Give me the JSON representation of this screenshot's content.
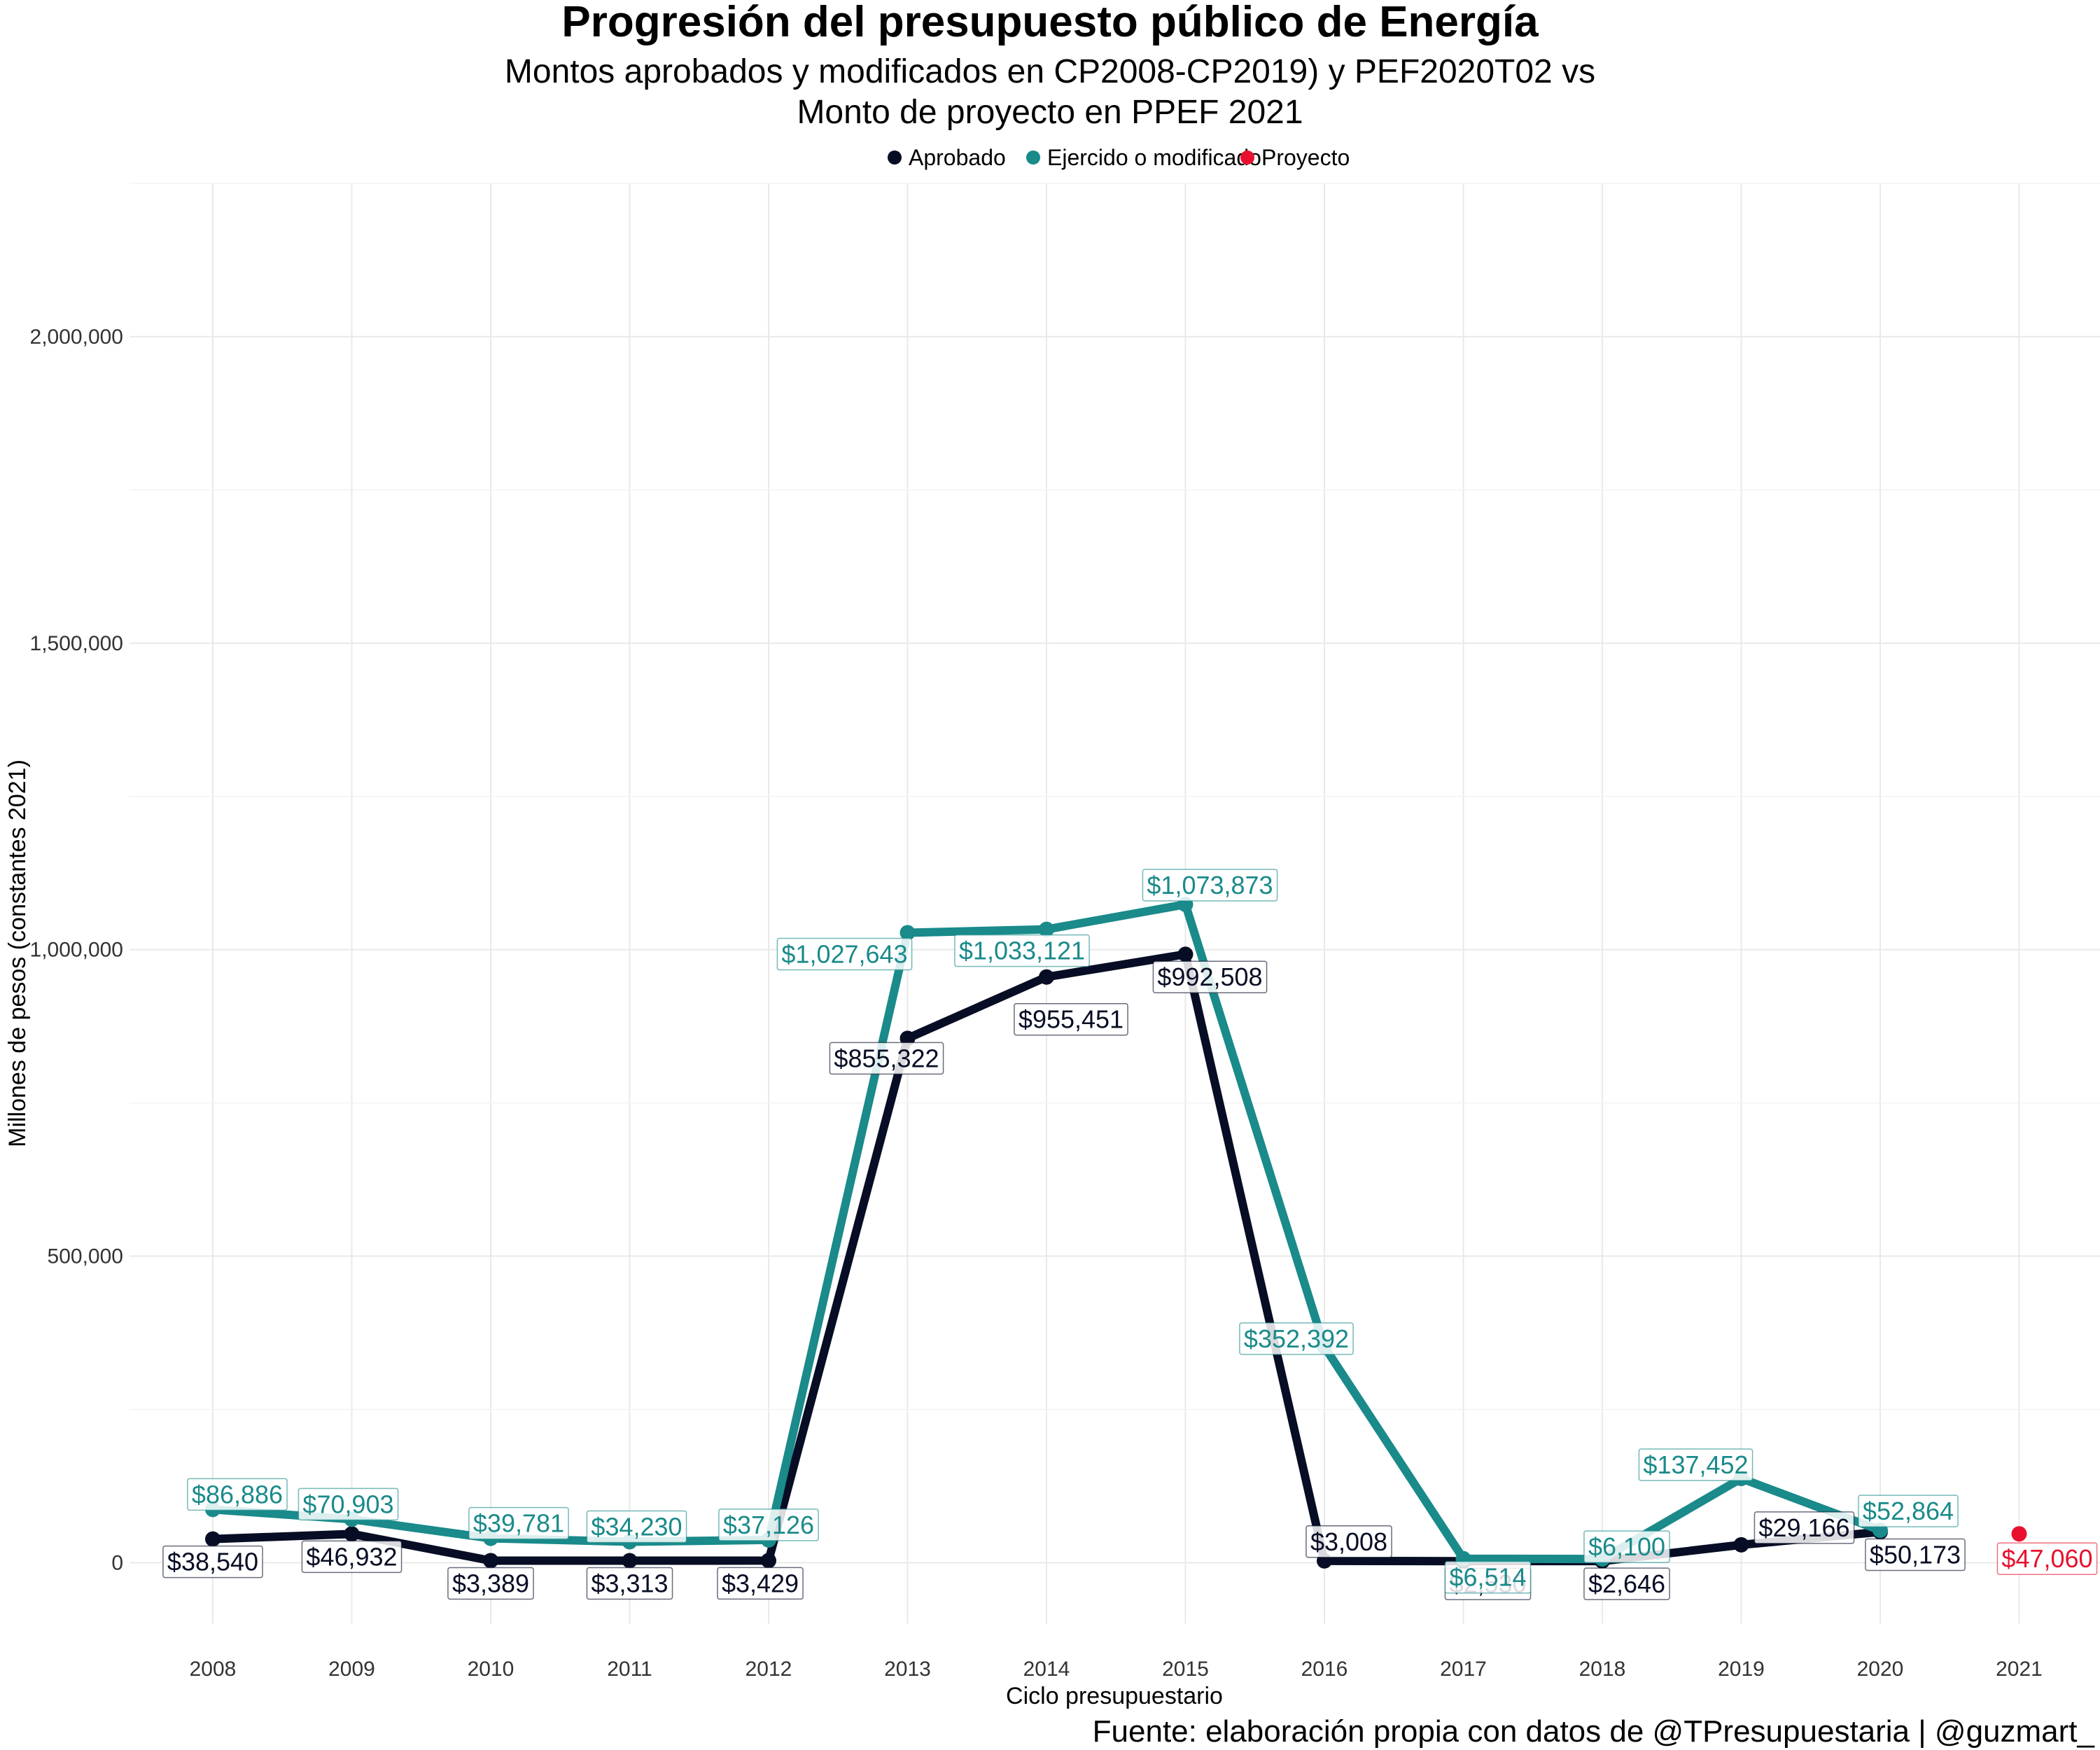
{
  "chart_data": {
    "type": "line",
    "title": "Progresión del presupuesto público de Energía",
    "subtitle_lines": [
      "Montos aprobados y modificados en CP2008-CP2019) y PEF2020T02 vs",
      "Monto de proyecto en PPEF 2021"
    ],
    "xlabel": "Ciclo presupuestario",
    "ylabel": "Millones de pesos (constantes 2021)",
    "caption": "Fuente: elaboración propia con datos de @TPresupuestaria | @guzmart_",
    "categories": [
      "2008",
      "2009",
      "2010",
      "2011",
      "2012",
      "2013",
      "2014",
      "2015",
      "2016",
      "2017",
      "2018",
      "2019",
      "2020",
      "2021"
    ],
    "ylim": [
      -100000,
      2250000
    ],
    "yticks": [
      0,
      500000,
      1000000,
      1500000,
      2000000
    ],
    "ytick_labels": [
      "0",
      "500,000",
      "1,000,000",
      "1,500,000",
      "2,000,000"
    ],
    "grid": true,
    "legend_position": "top",
    "series": [
      {
        "name": "Aprobado",
        "color": "#070d24",
        "values": [
          38540,
          46932,
          3389,
          3313,
          3429,
          855322,
          955451,
          992508,
          3008,
          2530,
          2646,
          29166,
          50173,
          null
        ],
        "labels": [
          "$38,540",
          "$46,932",
          "$3,389",
          "$3,313",
          "$3,429",
          "$855,322",
          "$955,451",
          "$992,508",
          "$3,008",
          "$2,530",
          "$2,646",
          "$29,166",
          "$50,173",
          null
        ]
      },
      {
        "name": "Ejercido o modificado",
        "color": "#1a8a8a",
        "values": [
          86886,
          70903,
          39781,
          34230,
          37126,
          1027643,
          1033121,
          1073873,
          352392,
          6514,
          6100,
          137452,
          52864,
          null
        ],
        "labels": [
          "$86,886",
          "$70,903",
          "$39,781",
          "$34,230",
          "$37,126",
          "$1,027,643",
          "$1,033,121",
          "$1,073,873",
          "$352,392",
          "$6,514",
          "$6,100",
          "$137,452",
          "$52,864",
          null
        ]
      },
      {
        "name": "Proyecto",
        "color": "#e8102e",
        "values": [
          null,
          null,
          null,
          null,
          null,
          null,
          null,
          null,
          null,
          null,
          null,
          null,
          null,
          47060
        ],
        "labels": [
          null,
          null,
          null,
          null,
          null,
          null,
          null,
          null,
          null,
          null,
          null,
          null,
          null,
          "$47,060"
        ]
      }
    ]
  }
}
